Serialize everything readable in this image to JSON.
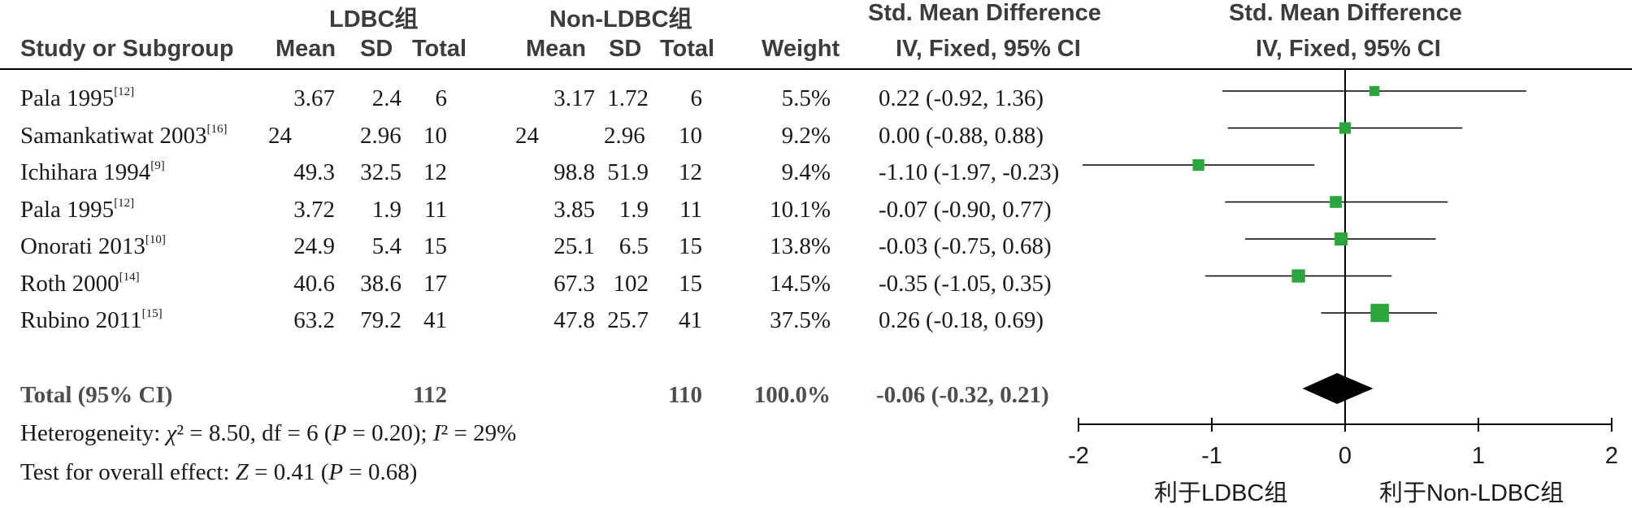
{
  "headers": {
    "group1": "LDBC组",
    "group2": "Non-LDBC组",
    "smd1": "Std. Mean Difference",
    "smd2": "Std. Mean Difference",
    "study": "Study or Subgroup",
    "mean": "Mean",
    "sd": "SD",
    "total": "Total",
    "weight": "Weight",
    "method1": "IV, Fixed, 95% CI",
    "method2": "IV, Fixed, 95% CI"
  },
  "rows": [
    {
      "study": "Pala 1995",
      "ref": "[12]",
      "m1": "3.67",
      "sd1": "2.4",
      "n1": "6",
      "m2": "3.17",
      "sd2": "1.72",
      "n2": "6",
      "weight": "5.5%",
      "ci": "0.22 (-0.92, 1.36)"
    },
    {
      "study": "Samankatiwat 2003",
      "ref": "[16]",
      "m1": "24",
      "sd1": "2.96",
      "n1": "10",
      "m2": "24",
      "sd2": "2.96",
      "n2": "10",
      "weight": "9.2%",
      "ci": "0.00 (-0.88, 0.88)"
    },
    {
      "study": "Ichihara 1994",
      "ref": "[9]",
      "m1": "49.3",
      "sd1": "32.5",
      "n1": "12",
      "m2": "98.8",
      "sd2": "51.9",
      "n2": "12",
      "weight": "9.4%",
      "ci": "-1.10 (-1.97, -0.23)"
    },
    {
      "study": "Pala 1995",
      "ref": "[12]",
      "m1": "3.72",
      "sd1": "1.9",
      "n1": "11",
      "m2": "3.85",
      "sd2": "1.9",
      "n2": "11",
      "weight": "10.1%",
      "ci": "-0.07 (-0.90, 0.77)"
    },
    {
      "study": "Onorati 2013",
      "ref": "[10]",
      "m1": "24.9",
      "sd1": "5.4",
      "n1": "15",
      "m2": "25.1",
      "sd2": "6.5",
      "n2": "15",
      "weight": "13.8%",
      "ci": "-0.03 (-0.75, 0.68)"
    },
    {
      "study": "Roth 2000",
      "ref": "[14]",
      "m1": "40.6",
      "sd1": "38.6",
      "n1": "17",
      "m2": "67.3",
      "sd2": "102",
      "n2": "15",
      "weight": "14.5%",
      "ci": "-0.35 (-1.05, 0.35)"
    },
    {
      "study": "Rubino 2011",
      "ref": "[15]",
      "m1": "63.2",
      "sd1": "79.2",
      "n1": "41",
      "m2": "47.8",
      "sd2": "25.7",
      "n2": "41",
      "weight": "37.5%",
      "ci": "0.26 (-0.18, 0.69)"
    }
  ],
  "total_row": {
    "label": "Total (95% CI)",
    "n1": "112",
    "n2": "110",
    "weight": "100.0%",
    "ci": "-0.06 (-0.32, 0.21)"
  },
  "footer": {
    "heterogeneity": {
      "prefix": "Heterogeneity: ",
      "chi": "χ",
      "chi_tail": "² = 8.50, df = 6 (",
      "p": "P",
      "p_tail": " = 0.20); ",
      "i": "I",
      "i_tail": "² = 29%"
    },
    "overall": {
      "prefix": "Test for overall effect: ",
      "z": "Z",
      "z_tail": " = 0.41 (",
      "p": "P",
      "p_tail": " = 0.68)"
    }
  },
  "colors": {
    "square": "#2aa63c",
    "diamond": "#000000",
    "line": "#000000"
  },
  "chart_data": {
    "type": "forest",
    "xlim": [
      -2,
      2
    ],
    "ticks": [
      "-2",
      "-1",
      "0",
      "1",
      "2"
    ],
    "xlabel_left": "利于LDBC组",
    "xlabel_right": "利于Non-LDBC组",
    "studies": [
      {
        "smd": 0.22,
        "lo": -0.92,
        "hi": 1.36,
        "weight": 5.5
      },
      {
        "smd": 0.0,
        "lo": -0.88,
        "hi": 0.88,
        "weight": 9.2
      },
      {
        "smd": -1.1,
        "lo": -1.97,
        "hi": -0.23,
        "weight": 9.4
      },
      {
        "smd": -0.07,
        "lo": -0.9,
        "hi": 0.77,
        "weight": 10.1
      },
      {
        "smd": -0.03,
        "lo": -0.75,
        "hi": 0.68,
        "weight": 13.8
      },
      {
        "smd": -0.35,
        "lo": -1.05,
        "hi": 0.35,
        "weight": 14.5
      },
      {
        "smd": 0.26,
        "lo": -0.18,
        "hi": 0.69,
        "weight": 37.5
      }
    ],
    "pooled": {
      "smd": -0.06,
      "lo": -0.32,
      "hi": 0.21
    }
  }
}
